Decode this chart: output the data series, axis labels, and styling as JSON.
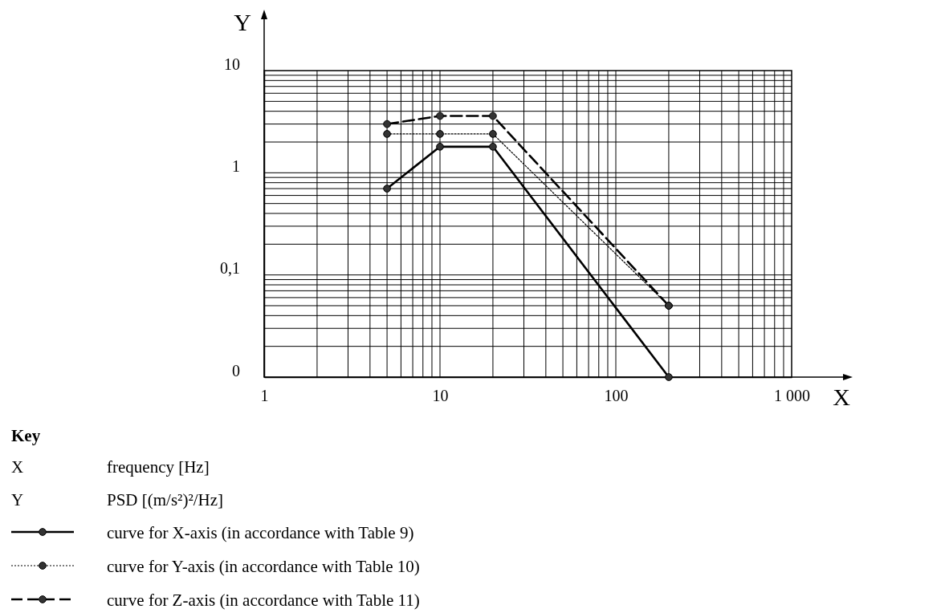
{
  "chart_data": {
    "type": "line",
    "xlabel": "X",
    "ylabel": "Y",
    "log": "xy",
    "grid": true,
    "marker": "circle",
    "legend": "bottom left",
    "legend_title": "Key",
    "annotations": [
      "X",
      "frequency [Hz]",
      "Y",
      "PSD [(m/s²)²/Hz]"
    ],
    "xlim": [
      1,
      1000
    ],
    "xticks": [
      1,
      10,
      100,
      {
        "value": 1000,
        "label": "1 000"
      }
    ],
    "ylim": [
      0.01,
      10
    ],
    "yticks": [
      {
        "value": 0.01,
        "label": "0"
      },
      {
        "value": 0.1,
        "label": "0,1"
      },
      1,
      10
    ],
    "x": [
      5,
      10,
      20,
      200
    ],
    "series": [
      {
        "name": "curve for X-axis (in accordance with Table 9)",
        "color": "#000000",
        "line_style": "solid",
        "values": [
          0.7,
          1.8,
          1.8,
          0.01
        ]
      },
      {
        "name": "curve for Y-axis (in accordance with Table 10)",
        "color": "#000000",
        "line_style": "dotted",
        "values": [
          2.4,
          2.4,
          2.4,
          0.05
        ]
      },
      {
        "name": "curve for Z-axis (in accordance with Table 11)",
        "color": "#000000",
        "line_style": "dashed",
        "values": [
          3,
          3.6,
          3.6,
          0.05
        ]
      }
    ]
  }
}
